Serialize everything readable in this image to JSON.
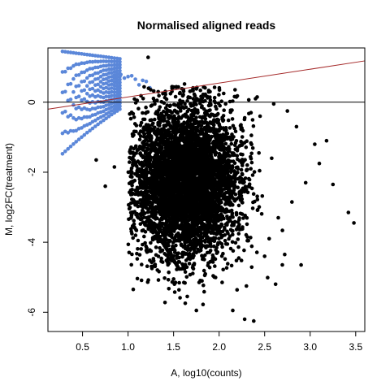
{
  "chart_data": {
    "type": "scatter",
    "title": "Normalised aligned reads",
    "xlabel": "A, log10(counts)",
    "ylabel": "M, log2FC(treatment)",
    "xlim": [
      0.12,
      3.6
    ],
    "ylim": [
      -6.55,
      1.55
    ],
    "xticks": [
      0.5,
      1.0,
      1.5,
      2.0,
      2.5,
      3.0,
      3.5
    ],
    "xtick_labels": [
      "0.5",
      "1.0",
      "1.5",
      "2.0",
      "2.5",
      "3.0",
      "3.5"
    ],
    "yticks": [
      -6,
      -4,
      -2,
      0
    ],
    "ytick_labels": [
      "-6",
      "-4",
      "-2",
      "0"
    ],
    "grid": false,
    "legend": "none",
    "colors": {
      "main_points": "#000000",
      "low_count_points": "#5b87d9",
      "fit_line": "#a52a2a",
      "zero_line": "#000000"
    },
    "hline": {
      "y": 0
    },
    "fit_line": {
      "x": [
        0.12,
        3.6
      ],
      "y": [
        -0.2,
        1.18
      ]
    },
    "series": [
      {
        "points": [
          [
            1.22,
            1.28
          ],
          [
            1.53,
            0.44
          ],
          [
            1.62,
            0.52
          ],
          [
            1.75,
            0.38
          ],
          [
            1.9,
            0.3
          ],
          [
            2.05,
            0.25
          ],
          [
            2.2,
            0.18
          ],
          [
            2.4,
            0.1
          ],
          [
            2.6,
            -0.05
          ],
          [
            2.75,
            -0.25
          ],
          [
            2.85,
            -0.7
          ],
          [
            3.05,
            -1.2
          ],
          [
            3.18,
            -1.1
          ],
          [
            3.25,
            -2.35
          ],
          [
            3.42,
            -3.15
          ],
          [
            3.48,
            -3.45
          ],
          [
            2.9,
            -4.65
          ],
          [
            2.72,
            -4.35
          ],
          [
            2.3,
            -5.25
          ],
          [
            2.15,
            -5.95
          ],
          [
            2.28,
            -6.2
          ],
          [
            2.38,
            -6.25
          ],
          [
            1.75,
            -5.95
          ],
          [
            1.65,
            -5.55
          ],
          [
            1.15,
            -1.72
          ],
          [
            1.05,
            -1.65
          ],
          [
            0.85,
            -1.85
          ],
          [
            0.75,
            -2.4
          ],
          [
            0.65,
            -1.65
          ],
          [
            1.35,
            -0.55
          ],
          [
            1.45,
            -0.25
          ],
          [
            1.3,
            -0.9
          ],
          [
            1.25,
            -1.35
          ],
          [
            1.1,
            -2.1
          ],
          [
            1.2,
            -2.7
          ],
          [
            1.28,
            -3.25
          ],
          [
            1.33,
            -3.6
          ],
          [
            1.4,
            -4.1
          ],
          [
            1.45,
            -4.6
          ],
          [
            1.5,
            -5.05
          ],
          [
            2.55,
            -3.9
          ],
          [
            2.65,
            -3.3
          ],
          [
            2.8,
            -2.85
          ],
          [
            2.95,
            -2.3
          ],
          [
            3.1,
            -1.75
          ],
          [
            2.5,
            -4.4
          ],
          [
            2.45,
            -0.4
          ],
          [
            2.35,
            -0.3
          ],
          [
            1.1,
            0.05
          ],
          [
            2.62,
            -5.2
          ]
        ]
      }
    ]
  }
}
